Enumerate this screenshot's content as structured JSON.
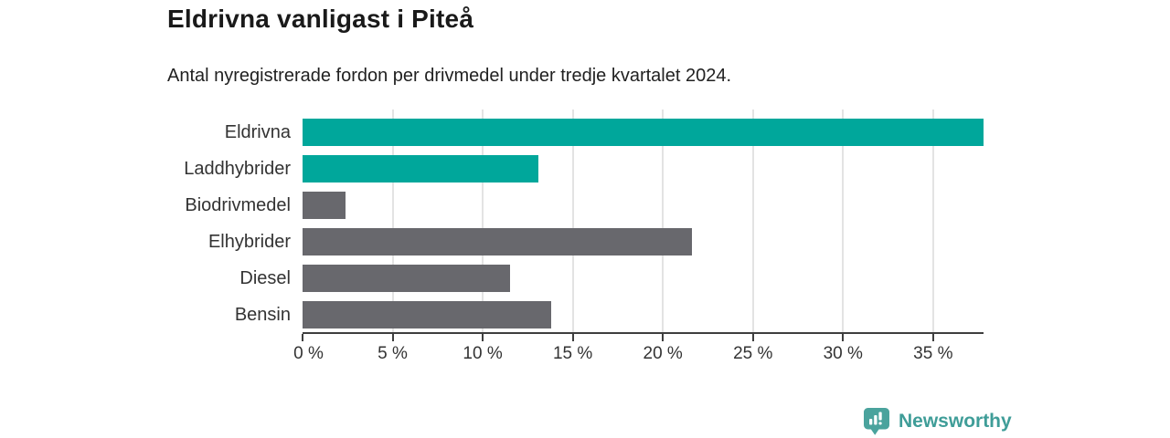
{
  "title": "Eldrivna vanligast i Piteå",
  "subtitle": "Antal nyregistrerade fordon per drivmedel under tredje kvartalet 2024.",
  "chart_data": {
    "type": "bar",
    "orientation": "horizontal",
    "categories": [
      "Eldrivna",
      "Laddhybrider",
      "Biodrivmedel",
      "Elhybrider",
      "Diesel",
      "Bensin"
    ],
    "values": [
      37.8,
      13.1,
      2.4,
      21.6,
      11.5,
      13.8
    ],
    "unit": "%",
    "bar_colors": [
      "#00a79b",
      "#00a79b",
      "#68686d",
      "#68686d",
      "#68686d",
      "#68686d"
    ],
    "highlight_color": "#00a79b",
    "default_color": "#68686d",
    "xlim": [
      0,
      37.8
    ],
    "x_ticks": [
      0,
      5,
      10,
      15,
      20,
      25,
      30,
      35
    ],
    "x_tick_labels": [
      "0 %",
      "5 %",
      "10 %",
      "15 %",
      "20 %",
      "25 %",
      "30 %",
      "35 %"
    ],
    "grid": "vertical",
    "legend": "none",
    "title": "Eldrivna vanligast i Piteå",
    "xlabel": "",
    "ylabel": ""
  },
  "colors": {
    "axis": "#3e3e3e",
    "gridline": "#e3e3e3",
    "label_text": "#333333",
    "title_text": "#1a1a1a",
    "logo_badge": "#4aa39d",
    "logo_text": "#3f9d98"
  },
  "footer": {
    "logo_text": "Newsworthy"
  }
}
